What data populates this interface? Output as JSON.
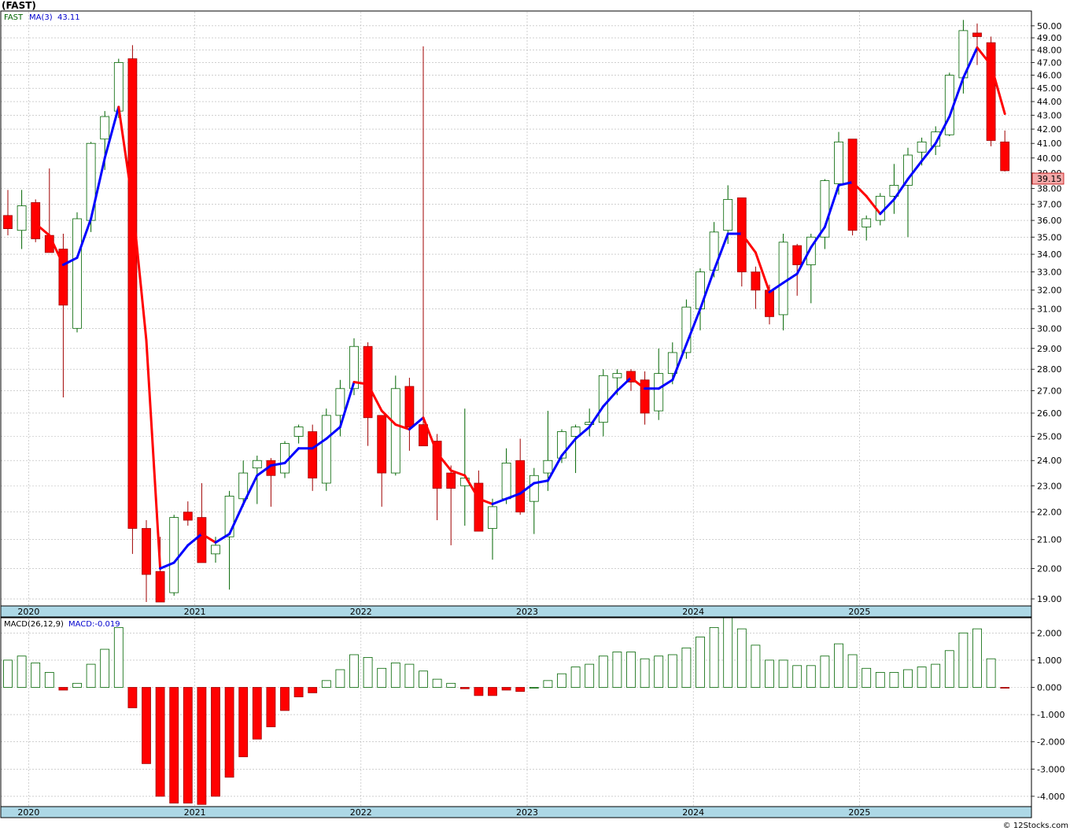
{
  "title": "(FAST)",
  "price_legend": {
    "symbol": "FAST",
    "ma_label": "MA(3)",
    "ma_value": "43.11"
  },
  "macd_legend": {
    "label": "MACD(26,12,9)",
    "value_label": "MACD:-0.019"
  },
  "last_price_label": "39.15",
  "credit": "© 12Stocks.com",
  "colors": {
    "up": "#006400",
    "down": "#ff0000",
    "ma_up": "#0000ff",
    "ma_down": "#ff0000",
    "axis_band": "#add8e6"
  },
  "chart_data": [
    {
      "type": "candlestick",
      "title": "(FAST)",
      "interval": "monthly",
      "x_year_labels": [
        "2020",
        "2021",
        "2022",
        "2023",
        "2024",
        "2025"
      ],
      "y_ticks": [
        "19.00",
        "20.00",
        "21.00",
        "22.00",
        "23.00",
        "24.00",
        "25.00",
        "26.00",
        "27.00",
        "28.00",
        "29.00",
        "30.00",
        "31.00",
        "32.00",
        "33.00",
        "34.00",
        "35.00",
        "36.00",
        "37.00",
        "38.00",
        "39.00",
        "40.00",
        "41.00",
        "42.00",
        "43.00",
        "44.00",
        "45.00",
        "46.00",
        "47.00",
        "48.00",
        "49.00",
        "50.00"
      ],
      "y_scale": "log",
      "ylim": [
        18.8,
        51.2
      ],
      "candles": [
        {
          "o": 36.3,
          "h": 37.9,
          "l": 35.1,
          "c": 35.5
        },
        {
          "o": 35.4,
          "h": 37.9,
          "l": 34.3,
          "c": 36.9
        },
        {
          "o": 37.1,
          "h": 37.3,
          "l": 34.7,
          "c": 34.9
        },
        {
          "o": 35.1,
          "h": 39.3,
          "l": 34.4,
          "c": 34.1
        },
        {
          "o": 34.3,
          "h": 35.2,
          "l": 26.7,
          "c": 31.2
        },
        {
          "o": 30.0,
          "h": 36.5,
          "l": 29.8,
          "c": 36.1
        },
        {
          "o": 36.0,
          "h": 41.1,
          "l": 35.3,
          "c": 41.0
        },
        {
          "o": 41.3,
          "h": 43.3,
          "l": 39.2,
          "c": 42.9
        },
        {
          "o": 43.3,
          "h": 47.3,
          "l": 42.8,
          "c": 47.0
        },
        {
          "o": 47.3,
          "h": 48.4,
          "l": 20.5,
          "c": 21.4
        },
        {
          "o": 21.4,
          "h": 21.7,
          "l": 18.9,
          "c": 19.8
        },
        {
          "o": 19.9,
          "h": 21.1,
          "l": 18.9,
          "c": 18.9
        },
        {
          "o": 19.2,
          "h": 21.9,
          "l": 19.1,
          "c": 21.8
        },
        {
          "o": 22.0,
          "h": 22.4,
          "l": 21.5,
          "c": 21.7
        },
        {
          "o": 21.8,
          "h": 23.1,
          "l": 20.5,
          "c": 20.2
        },
        {
          "o": 20.5,
          "h": 21.1,
          "l": 20.2,
          "c": 20.8
        },
        {
          "o": 21.1,
          "h": 22.8,
          "l": 19.3,
          "c": 22.6
        },
        {
          "o": 22.5,
          "h": 24.0,
          "l": 22.2,
          "c": 23.5
        },
        {
          "o": 23.7,
          "h": 24.2,
          "l": 22.3,
          "c": 24.0
        },
        {
          "o": 24.0,
          "h": 24.1,
          "l": 22.2,
          "c": 23.4
        },
        {
          "o": 23.5,
          "h": 24.8,
          "l": 23.3,
          "c": 24.7
        },
        {
          "o": 25.0,
          "h": 25.5,
          "l": 24.7,
          "c": 25.4
        },
        {
          "o": 25.2,
          "h": 25.5,
          "l": 22.8,
          "c": 23.3
        },
        {
          "o": 23.1,
          "h": 26.2,
          "l": 22.8,
          "c": 25.9
        },
        {
          "o": 25.9,
          "h": 27.5,
          "l": 25.0,
          "c": 27.1
        },
        {
          "o": 27.1,
          "h": 29.5,
          "l": 26.8,
          "c": 29.1
        },
        {
          "o": 29.1,
          "h": 29.3,
          "l": 24.6,
          "c": 25.8
        },
        {
          "o": 25.9,
          "h": 25.9,
          "l": 22.2,
          "c": 23.5
        },
        {
          "o": 23.5,
          "h": 27.7,
          "l": 23.4,
          "c": 27.1
        },
        {
          "o": 27.2,
          "h": 27.6,
          "l": 24.4,
          "c": 25.4
        },
        {
          "o": 25.5,
          "h": 48.3,
          "l": 24.8,
          "c": 24.6
        },
        {
          "o": 24.8,
          "h": 25.1,
          "l": 21.7,
          "c": 22.9
        },
        {
          "o": 23.5,
          "h": 23.8,
          "l": 20.8,
          "c": 22.9
        },
        {
          "o": 23.0,
          "h": 26.2,
          "l": 21.5,
          "c": 23.3
        },
        {
          "o": 23.1,
          "h": 23.6,
          "l": 21.3,
          "c": 21.3
        },
        {
          "o": 21.4,
          "h": 22.5,
          "l": 20.3,
          "c": 22.2
        },
        {
          "o": 22.5,
          "h": 24.5,
          "l": 22.3,
          "c": 23.9
        },
        {
          "o": 24.0,
          "h": 24.9,
          "l": 21.9,
          "c": 22.0
        },
        {
          "o": 22.4,
          "h": 23.7,
          "l": 21.2,
          "c": 23.4
        },
        {
          "o": 23.5,
          "h": 26.1,
          "l": 22.8,
          "c": 24.0
        },
        {
          "o": 24.1,
          "h": 25.3,
          "l": 23.9,
          "c": 25.2
        },
        {
          "o": 25.0,
          "h": 25.5,
          "l": 23.5,
          "c": 25.4
        },
        {
          "o": 25.5,
          "h": 26.2,
          "l": 25.0,
          "c": 25.6
        },
        {
          "o": 25.6,
          "h": 28.0,
          "l": 25.0,
          "c": 27.7
        },
        {
          "o": 27.6,
          "h": 28.0,
          "l": 26.8,
          "c": 27.8
        },
        {
          "o": 27.9,
          "h": 28.0,
          "l": 27.0,
          "c": 27.4
        },
        {
          "o": 27.5,
          "h": 27.9,
          "l": 25.5,
          "c": 26.0
        },
        {
          "o": 26.1,
          "h": 29.0,
          "l": 25.7,
          "c": 27.8
        },
        {
          "o": 27.8,
          "h": 29.3,
          "l": 27.3,
          "c": 28.8
        },
        {
          "o": 28.8,
          "h": 31.5,
          "l": 28.5,
          "c": 31.1
        },
        {
          "o": 31.0,
          "h": 33.2,
          "l": 29.9,
          "c": 33.0
        },
        {
          "o": 33.1,
          "h": 35.9,
          "l": 32.7,
          "c": 35.3
        },
        {
          "o": 35.4,
          "h": 38.2,
          "l": 34.6,
          "c": 37.3
        },
        {
          "o": 37.4,
          "h": 37.4,
          "l": 32.2,
          "c": 33.0
        },
        {
          "o": 33.0,
          "h": 33.3,
          "l": 31.0,
          "c": 32.0
        },
        {
          "o": 32.0,
          "h": 32.3,
          "l": 30.2,
          "c": 30.6
        },
        {
          "o": 30.7,
          "h": 35.2,
          "l": 29.9,
          "c": 34.7
        },
        {
          "o": 34.5,
          "h": 34.6,
          "l": 31.7,
          "c": 33.4
        },
        {
          "o": 33.4,
          "h": 35.2,
          "l": 31.3,
          "c": 35.0
        },
        {
          "o": 35.0,
          "h": 38.6,
          "l": 34.3,
          "c": 38.5
        },
        {
          "o": 38.3,
          "h": 41.8,
          "l": 37.6,
          "c": 41.1
        },
        {
          "o": 41.3,
          "h": 41.3,
          "l": 35.1,
          "c": 35.4
        },
        {
          "o": 35.6,
          "h": 36.3,
          "l": 34.8,
          "c": 36.1
        },
        {
          "o": 36.0,
          "h": 37.7,
          "l": 35.7,
          "c": 37.5
        },
        {
          "o": 37.5,
          "h": 39.6,
          "l": 36.4,
          "c": 38.2
        },
        {
          "o": 38.2,
          "h": 40.7,
          "l": 35.0,
          "c": 40.2
        },
        {
          "o": 40.4,
          "h": 41.4,
          "l": 39.5,
          "c": 41.1
        },
        {
          "o": 40.8,
          "h": 42.2,
          "l": 40.2,
          "c": 41.8
        },
        {
          "o": 41.6,
          "h": 46.2,
          "l": 41.5,
          "c": 46.0
        },
        {
          "o": 45.8,
          "h": 50.5,
          "l": 44.6,
          "c": 49.6
        },
        {
          "o": 49.4,
          "h": 50.2,
          "l": 46.8,
          "c": 49.1
        },
        {
          "o": 48.6,
          "h": 49.1,
          "l": 40.8,
          "c": 41.2
        },
        {
          "o": 41.1,
          "h": 41.9,
          "l": 39.1,
          "c": 39.15
        }
      ],
      "ma3": [
        null,
        null,
        35.8,
        35.1,
        33.4,
        33.8,
        36.1,
        40.0,
        43.6,
        37.1,
        29.4,
        20.0,
        20.2,
        20.8,
        21.2,
        20.9,
        21.2,
        22.3,
        23.4,
        23.8,
        23.9,
        24.5,
        24.5,
        24.9,
        25.4,
        27.4,
        27.3,
        26.1,
        25.5,
        25.3,
        25.8,
        24.3,
        23.6,
        23.4,
        22.5,
        22.3,
        22.5,
        22.7,
        23.1,
        23.2,
        24.2,
        24.9,
        25.4,
        26.3,
        27.0,
        27.6,
        27.1,
        27.1,
        27.5,
        29.2,
        31.0,
        33.1,
        35.2,
        35.2,
        34.1,
        31.9,
        32.4,
        32.9,
        34.4,
        35.6,
        38.2,
        38.4,
        37.5,
        36.4,
        37.3,
        38.6,
        39.8,
        41.0,
        42.9,
        45.8,
        48.2,
        46.8,
        43.1
      ]
    },
    {
      "type": "bar",
      "title": "MACD(26,12,9)",
      "y_ticks": [
        "2.000",
        "1.000",
        "0.000",
        "-1.000",
        "-2.000",
        "-3.000",
        "-4.000"
      ],
      "ylim": [
        -4.35,
        2.5
      ],
      "values": [
        1.0,
        1.15,
        0.9,
        0.55,
        -0.1,
        0.15,
        0.85,
        1.4,
        2.2,
        -0.75,
        -2.8,
        -4.0,
        -4.25,
        -4.25,
        -4.3,
        -4.0,
        -3.3,
        -2.55,
        -1.9,
        -1.45,
        -0.85,
        -0.35,
        -0.2,
        0.25,
        0.65,
        1.2,
        1.1,
        0.7,
        0.9,
        0.85,
        0.6,
        0.3,
        0.15,
        -0.05,
        -0.3,
        -0.3,
        -0.1,
        -0.15,
        0.0,
        0.25,
        0.5,
        0.75,
        0.85,
        1.15,
        1.3,
        1.3,
        1.05,
        1.15,
        1.2,
        1.45,
        1.85,
        2.2,
        2.6,
        2.15,
        1.55,
        1.0,
        1.0,
        0.8,
        0.8,
        1.15,
        1.6,
        1.2,
        0.7,
        0.55,
        0.55,
        0.65,
        0.75,
        0.85,
        1.35,
        2.0,
        2.15,
        1.05,
        -0.02
      ]
    }
  ]
}
